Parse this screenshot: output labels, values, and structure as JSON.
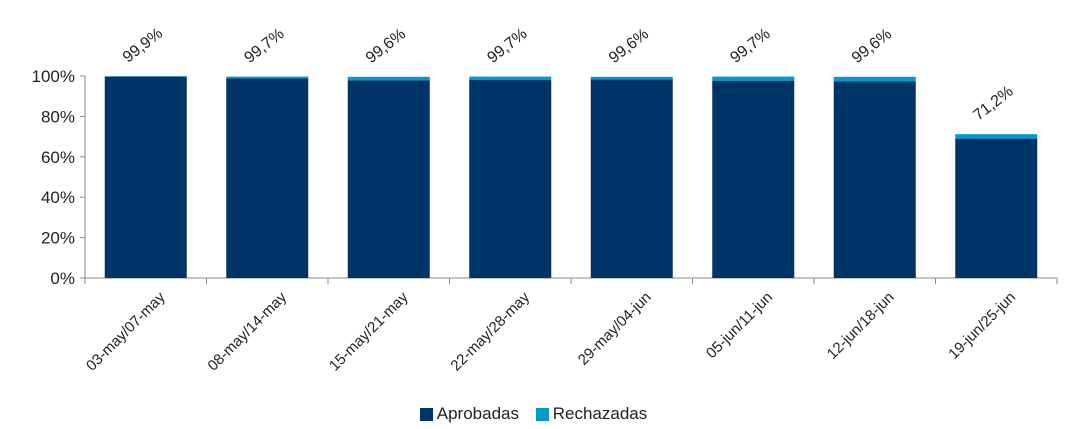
{
  "chart_data": {
    "type": "bar",
    "stacked": true,
    "categories": [
      "03-may/07-may",
      "08-may/14-may",
      "15-may/21-may",
      "22-may/28-may",
      "29-may/04-jun",
      "05-jun/11-jun",
      "12-jun/18-jun",
      "19-jun/25-jun"
    ],
    "series": [
      {
        "name": "Aprobadas",
        "values": [
          99.7,
          98.8,
          97.9,
          98.0,
          98.3,
          97.7,
          97.3,
          69.0
        ],
        "color": "#003366"
      },
      {
        "name": "Rechazadas",
        "values": [
          0.2,
          0.9,
          1.7,
          1.7,
          1.3,
          2.0,
          2.3,
          2.2
        ],
        "color": "#0099CC"
      }
    ],
    "totals_labels": [
      "99,9%",
      "99,7%",
      "99,6%",
      "99,7%",
      "99,6%",
      "99,7%",
      "99,6%",
      "71,2%"
    ],
    "y_ticks": [
      "0%",
      "20%",
      "40%",
      "60%",
      "80%",
      "100%"
    ],
    "ylim": [
      0,
      100
    ],
    "grid": false,
    "legend_position": "bottom"
  }
}
